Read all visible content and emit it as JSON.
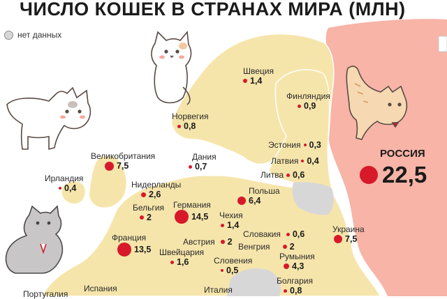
{
  "title": "ЧИСЛО КОШЕК В СТРАНАХ МИРА (МЛН)",
  "legend": {
    "no_data": "нет данных",
    "no_data_color": "#d7d7d7"
  },
  "colors": {
    "land": "#f6e5ab",
    "russia": "#f7b4a7",
    "sea": "#ffffff",
    "dot": "#d7192a"
  },
  "countries": [
    {
      "id": "sweden",
      "name": "Швеция",
      "value": "1,4"
    },
    {
      "id": "finland",
      "name": "Финляндия",
      "value": "0,9"
    },
    {
      "id": "norway",
      "name": "Норвегия",
      "value": "0,8"
    },
    {
      "id": "estonia",
      "name": "Эстония",
      "value": "0,3"
    },
    {
      "id": "latvia",
      "name": "Латвия",
      "value": "0,4"
    },
    {
      "id": "lithuania",
      "name": "Литва",
      "value": "0,6"
    },
    {
      "id": "uk",
      "name": "Великобритания",
      "value": "7,5"
    },
    {
      "id": "denmark",
      "name": "Дания",
      "value": "0,7"
    },
    {
      "id": "ireland",
      "name": "Ирландия",
      "value": "0,4"
    },
    {
      "id": "netherlands",
      "name": "Нидерланды",
      "value": "2,6"
    },
    {
      "id": "poland",
      "name": "Польша",
      "value": "6,4"
    },
    {
      "id": "belgium",
      "name": "Бельгия",
      "value": "2"
    },
    {
      "id": "germany",
      "name": "Германия",
      "value": "14,5"
    },
    {
      "id": "czechia",
      "name": "Чехия",
      "value": "1,4"
    },
    {
      "id": "slovakia",
      "name": "Словакия",
      "value": "0,6"
    },
    {
      "id": "ukraine",
      "name": "Украина",
      "value": "7,5"
    },
    {
      "id": "france",
      "name": "Франция",
      "value": "13,5"
    },
    {
      "id": "austria",
      "name": "Австрия",
      "value": "2"
    },
    {
      "id": "hungary",
      "name": "Венгрия",
      "value": "2"
    },
    {
      "id": "switzerland",
      "name": "Швейцария",
      "value": "1,6"
    },
    {
      "id": "slovenia",
      "name": "Словения",
      "value": "0,5"
    },
    {
      "id": "romania",
      "name": "Румыния",
      "value": "4,3"
    },
    {
      "id": "bulgaria",
      "name": "Болгария",
      "value": "0,8"
    },
    {
      "id": "spain",
      "name": "Испания",
      "value": ""
    },
    {
      "id": "portugal",
      "name": "Португалия",
      "value": ""
    },
    {
      "id": "italy",
      "name": "Италия",
      "value": ""
    }
  ],
  "russia": {
    "name": "РОССИЯ",
    "value": "22,5"
  }
}
